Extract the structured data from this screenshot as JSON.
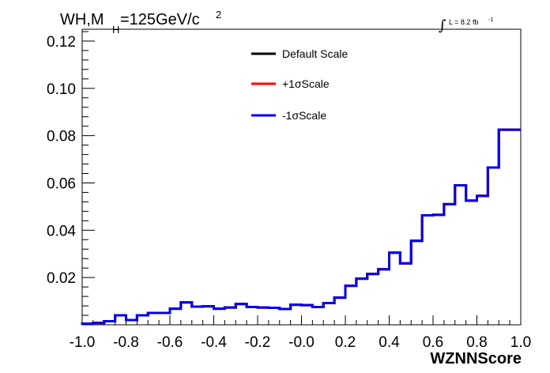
{
  "chart_data": {
    "type": "line",
    "title": {
      "main": "WH,M",
      "subscript": "H",
      "rest": "=125GeV/c",
      "superscript": "2"
    },
    "luminosity": {
      "integral": "∫",
      "text": "L = 8.2 fb",
      "superscript": "-1"
    },
    "xlabel": "WZNNScore",
    "ylabel": "",
    "xlim": [
      -1.0,
      1.0
    ],
    "ylim": [
      0.0,
      0.125
    ],
    "x_ticks": [
      "-1.0",
      "-0.8",
      "-0.6",
      "-0.4",
      "-0.2",
      "-0.0",
      "0.2",
      "0.4",
      "0.6",
      "0.8",
      "1.0"
    ],
    "y_ticks": [
      "0.02",
      "0.04",
      "0.06",
      "0.08",
      "0.10",
      "0.12"
    ],
    "bin_edges": [
      -1.0,
      -0.95,
      -0.9,
      -0.85,
      -0.8,
      -0.75,
      -0.7,
      -0.65,
      -0.6,
      -0.55,
      -0.5,
      -0.45,
      -0.4,
      -0.35,
      -0.3,
      -0.25,
      -0.2,
      -0.15,
      -0.1,
      -0.05,
      0.0,
      0.05,
      0.1,
      0.15,
      0.2,
      0.25,
      0.3,
      0.35,
      0.4,
      0.45,
      0.5,
      0.55,
      0.6,
      0.65,
      0.7,
      0.75,
      0.8,
      0.85,
      0.9,
      0.95,
      1.0
    ],
    "series": [
      {
        "name": "Default Scale",
        "color": "#000000",
        "values": [
          0.0005,
          0.0008,
          0.0015,
          0.004,
          0.002,
          0.004,
          0.005,
          0.005,
          0.0068,
          0.0095,
          0.0077,
          0.0078,
          0.0068,
          0.0073,
          0.0088,
          0.0075,
          0.0073,
          0.0072,
          0.0067,
          0.0085,
          0.0083,
          0.0075,
          0.0092,
          0.0115,
          0.0165,
          0.0195,
          0.0215,
          0.0235,
          0.0305,
          0.026,
          0.0355,
          0.0463,
          0.0465,
          0.051,
          0.059,
          0.0525,
          0.0545,
          0.0665,
          0.0825,
          0.0825
        ]
      },
      {
        "name": "+1σScale",
        "color": "#ff0000",
        "values": [
          0.0005,
          0.0008,
          0.0015,
          0.004,
          0.002,
          0.004,
          0.005,
          0.005,
          0.0068,
          0.0095,
          0.0077,
          0.0078,
          0.0068,
          0.0073,
          0.0088,
          0.0075,
          0.0073,
          0.0072,
          0.0067,
          0.0085,
          0.0083,
          0.0075,
          0.0092,
          0.0115,
          0.0165,
          0.0195,
          0.0215,
          0.0235,
          0.0305,
          0.026,
          0.0355,
          0.0463,
          0.0465,
          0.051,
          0.059,
          0.0525,
          0.0545,
          0.0665,
          0.0825,
          0.0825
        ]
      },
      {
        "name": "-1σScale",
        "color": "#0000ee",
        "values": [
          0.0005,
          0.0008,
          0.0015,
          0.004,
          0.002,
          0.004,
          0.005,
          0.005,
          0.0068,
          0.0095,
          0.0077,
          0.0078,
          0.0068,
          0.0073,
          0.0088,
          0.0075,
          0.0073,
          0.0072,
          0.0067,
          0.0085,
          0.0083,
          0.0075,
          0.0092,
          0.0115,
          0.0165,
          0.0195,
          0.0215,
          0.0235,
          0.0305,
          0.026,
          0.0355,
          0.0463,
          0.0465,
          0.051,
          0.059,
          0.0525,
          0.0545,
          0.0665,
          0.0825,
          0.0825
        ]
      }
    ],
    "legend": {
      "position": "top-center",
      "entries": [
        "Default Scale",
        "+1σScale",
        "-1σScale"
      ]
    },
    "grid": false
  }
}
